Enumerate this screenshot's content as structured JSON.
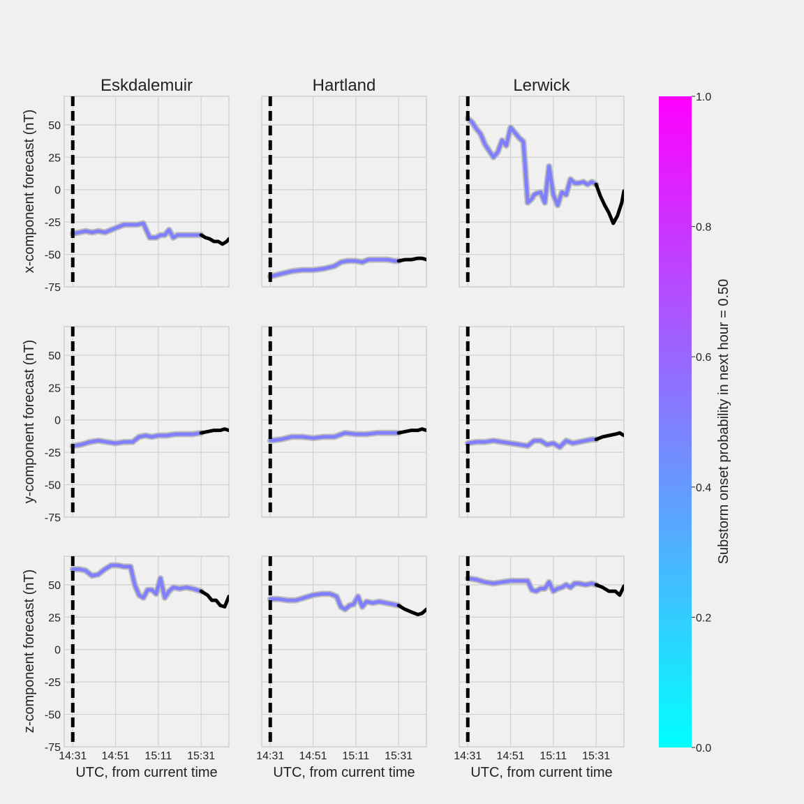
{
  "figure": {
    "stations": [
      "Eskdalemuir",
      "Hartland",
      "Lerwick"
    ],
    "row_labels": [
      "x-component forecast (nT)",
      "y-component forecast (nT)",
      "z-component forecast (nT)"
    ],
    "xlabel": "UTC, from current time",
    "colorbar": {
      "label": "Substorm onset probability in next hour = 0.50",
      "ticks": [
        "0.0",
        "0.2",
        "0.4",
        "0.6",
        "0.8",
        "1.0"
      ],
      "low_color": "#00ffff",
      "high_color": "#ff00ff"
    },
    "forecast_color": "#7f7fff",
    "observed_color": "#000000"
  },
  "chart_data": {
    "type": "line",
    "x_tick_labels": [
      "14:31",
      "14:51",
      "15:11",
      "15:31"
    ],
    "x_tick_values": [
      0,
      20,
      40,
      60
    ],
    "xlim": [
      -4,
      73
    ],
    "ylim": [
      -75,
      72
    ],
    "y_ticks": [
      50,
      25,
      0,
      -25,
      -50,
      -75
    ],
    "current_time_x": 0,
    "forecast_end_x": 60,
    "panels": [
      {
        "station": "Eskdalemuir",
        "component": "x",
        "series": [
          {
            "x": [
              0,
              3,
              6,
              9,
              12,
              15,
              18,
              21,
              24,
              27,
              30,
              33,
              36,
              39,
              41,
              43,
              45,
              47,
              49,
              52,
              55,
              58,
              60
            ],
            "y": [
              -34,
              -33,
              -32,
              -33,
              -32,
              -33,
              -31,
              -29,
              -27,
              -27,
              -27,
              -26,
              -37,
              -37,
              -35,
              -35,
              -31,
              -37,
              -35,
              -35,
              -35,
              -35,
              -35
            ],
            "kind": "forecast"
          },
          {
            "x": [
              60,
              62,
              64,
              66,
              68,
              70,
              72,
              73
            ],
            "y": [
              -35,
              -37,
              -38,
              -40,
              -40,
              -42,
              -40,
              -38
            ],
            "kind": "observed"
          }
        ]
      },
      {
        "station": "Hartland",
        "component": "x",
        "series": [
          {
            "x": [
              0,
              5,
              10,
              15,
              20,
              25,
              30,
              33,
              36,
              40,
              43,
              46,
              49,
              52,
              55,
              58,
              60
            ],
            "y": [
              -67,
              -65,
              -63,
              -62,
              -62,
              -61,
              -59,
              -56,
              -55,
              -55,
              -56,
              -54,
              -54,
              -54,
              -54,
              -55,
              -55
            ],
            "kind": "forecast"
          },
          {
            "x": [
              60,
              63,
              66,
              69,
              71,
              73
            ],
            "y": [
              -55,
              -54,
              -54,
              -53,
              -53,
              -54
            ],
            "kind": "observed"
          }
        ]
      },
      {
        "station": "Lerwick",
        "component": "x",
        "series": [
          {
            "x": [
              0,
              2,
              4,
              6,
              8,
              10,
              12,
              14,
              16,
              18,
              20,
              22,
              24,
              26,
              28,
              30,
              31,
              32,
              34,
              36,
              38,
              40,
              42,
              44,
              46,
              48,
              50,
              52,
              54,
              56,
              58,
              60
            ],
            "y": [
              55,
              52,
              47,
              43,
              35,
              30,
              25,
              29,
              38,
              34,
              48,
              44,
              40,
              37,
              -10,
              -7,
              -4,
              -3,
              -2,
              -10,
              18,
              -4,
              -12,
              -2,
              -4,
              8,
              5,
              5,
              6,
              4,
              6,
              4
            ],
            "kind": "forecast"
          },
          {
            "x": [
              60,
              62,
              64,
              66,
              68,
              70,
              72,
              73
            ],
            "y": [
              4,
              -5,
              -12,
              -18,
              -26,
              -20,
              -10,
              -1
            ],
            "kind": "observed"
          }
        ]
      },
      {
        "station": "Eskdalemuir",
        "component": "y",
        "series": [
          {
            "x": [
              0,
              4,
              8,
              12,
              16,
              20,
              24,
              28,
              31,
              34,
              37,
              40,
              44,
              48,
              52,
              56,
              60
            ],
            "y": [
              -20,
              -19,
              -17,
              -16,
              -17,
              -18,
              -17,
              -17,
              -13,
              -12,
              -13,
              -12,
              -12,
              -11,
              -11,
              -11,
              -10
            ],
            "kind": "forecast"
          },
          {
            "x": [
              60,
              63,
              66,
              69,
              71,
              73
            ],
            "y": [
              -10,
              -9,
              -8,
              -8,
              -7,
              -8
            ],
            "kind": "observed"
          }
        ]
      },
      {
        "station": "Hartland",
        "component": "y",
        "series": [
          {
            "x": [
              0,
              5,
              10,
              15,
              20,
              25,
              30,
              35,
              40,
              45,
              50,
              55,
              60
            ],
            "y": [
              -16,
              -15,
              -13,
              -13,
              -14,
              -13,
              -13,
              -10,
              -11,
              -11,
              -10,
              -10,
              -10
            ],
            "kind": "forecast"
          },
          {
            "x": [
              60,
              63,
              66,
              69,
              71,
              73
            ],
            "y": [
              -10,
              -9,
              -8,
              -8,
              -7,
              -8
            ],
            "kind": "observed"
          }
        ]
      },
      {
        "station": "Lerwick",
        "component": "y",
        "series": [
          {
            "x": [
              0,
              4,
              8,
              12,
              16,
              20,
              24,
              28,
              31,
              34,
              37,
              40,
              43,
              46,
              49,
              52,
              55,
              58,
              60
            ],
            "y": [
              -18,
              -17,
              -17,
              -16,
              -17,
              -18,
              -19,
              -20,
              -16,
              -16,
              -19,
              -18,
              -21,
              -16,
              -18,
              -17,
              -16,
              -15,
              -15
            ],
            "kind": "forecast"
          },
          {
            "x": [
              60,
              63,
              66,
              69,
              71,
              73
            ],
            "y": [
              -15,
              -13,
              -12,
              -11,
              -10,
              -12
            ],
            "kind": "observed"
          }
        ]
      },
      {
        "station": "Eskdalemuir",
        "component": "z",
        "series": [
          {
            "x": [
              0,
              3,
              6,
              9,
              12,
              15,
              18,
              21,
              24,
              27,
              29,
              31,
              33,
              35,
              37,
              39,
              41,
              43,
              45,
              47,
              50,
              53,
              56,
              60
            ],
            "y": [
              62,
              62,
              61,
              57,
              58,
              62,
              65,
              65,
              64,
              64,
              50,
              42,
              40,
              46,
              46,
              43,
              55,
              40,
              45,
              48,
              47,
              48,
              47,
              45
            ],
            "kind": "forecast"
          },
          {
            "x": [
              60,
              63,
              65,
              67,
              69,
              71,
              73
            ],
            "y": [
              45,
              42,
              38,
              38,
              34,
              33,
              41
            ],
            "kind": "observed"
          }
        ]
      },
      {
        "station": "Hartland",
        "component": "z",
        "series": [
          {
            "x": [
              0,
              4,
              8,
              12,
              16,
              20,
              24,
              28,
              31,
              33,
              35,
              37,
              39,
              41,
              43,
              45,
              48,
              51,
              54,
              57,
              60
            ],
            "y": [
              39,
              39,
              38,
              38,
              40,
              42,
              43,
              43,
              41,
              33,
              31,
              34,
              35,
              41,
              33,
              37,
              36,
              37,
              36,
              35,
              34
            ],
            "kind": "forecast"
          },
          {
            "x": [
              60,
              63,
              66,
              69,
              71,
              73
            ],
            "y": [
              34,
              31,
              29,
              27,
              28,
              31
            ],
            "kind": "observed"
          }
        ]
      },
      {
        "station": "Lerwick",
        "component": "z",
        "series": [
          {
            "x": [
              0,
              4,
              8,
              12,
              16,
              20,
              24,
              28,
              30,
              32,
              34,
              36,
              38,
              40,
              42,
              44,
              46,
              48,
              50,
              52,
              55,
              58,
              60
            ],
            "y": [
              55,
              54,
              52,
              51,
              52,
              53,
              53,
              53,
              46,
              45,
              47,
              47,
              52,
              45,
              47,
              48,
              50,
              48,
              51,
              51,
              50,
              51,
              50
            ],
            "kind": "forecast"
          },
          {
            "x": [
              60,
              63,
              66,
              69,
              71,
              73
            ],
            "y": [
              50,
              48,
              45,
              45,
              42,
              49
            ],
            "kind": "observed"
          }
        ]
      }
    ]
  }
}
